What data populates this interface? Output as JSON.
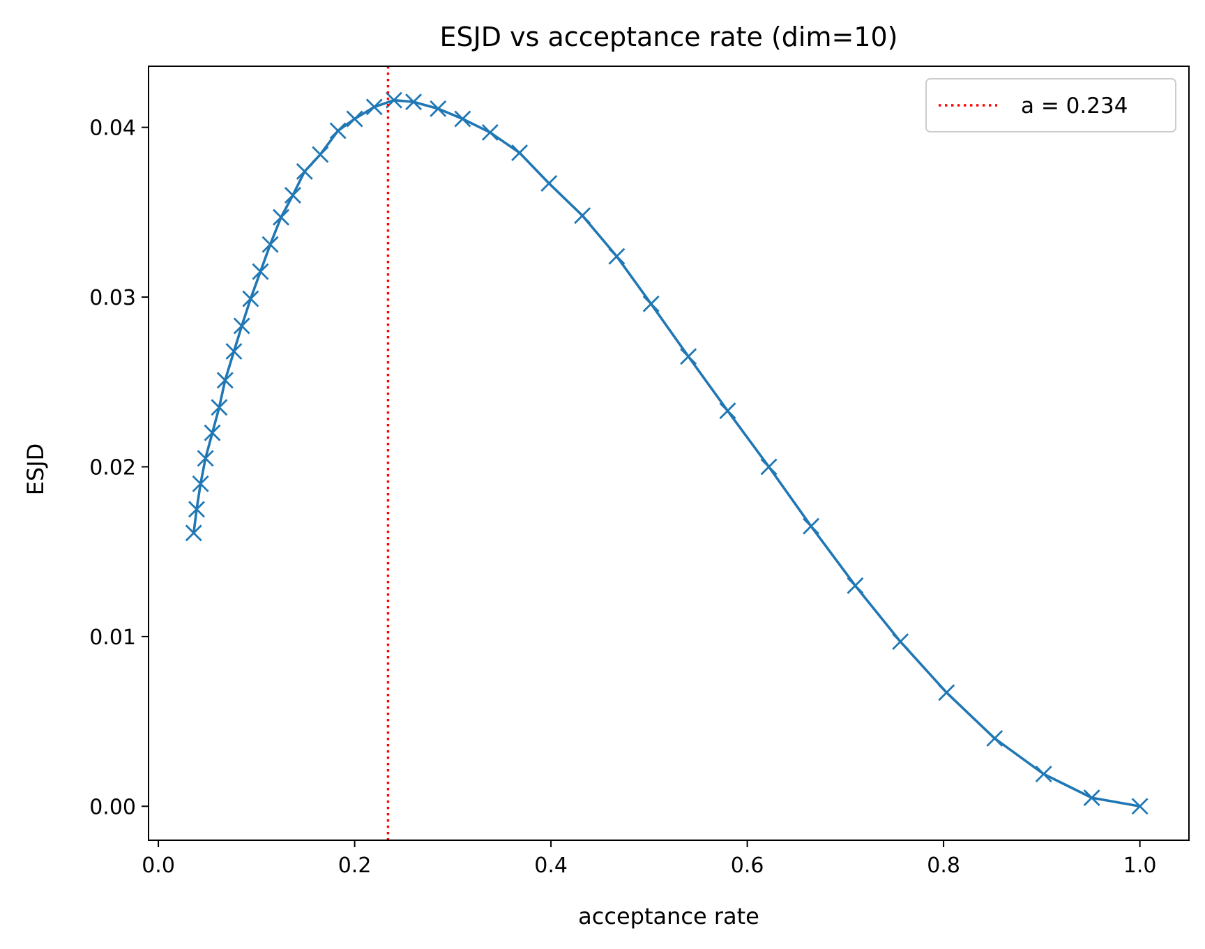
{
  "chart_data": {
    "type": "line",
    "title": "ESJD vs acceptance rate (dim=10)",
    "xlabel": "acceptance rate",
    "ylabel": "ESJD",
    "xlim": [
      -0.01,
      1.05
    ],
    "ylim": [
      -0.002,
      0.0436
    ],
    "xticks": [
      0.0,
      0.2,
      0.4,
      0.6,
      0.8,
      1.0
    ],
    "xtick_labels": [
      "0.0",
      "0.2",
      "0.4",
      "0.6",
      "0.8",
      "1.0"
    ],
    "yticks": [
      0.0,
      0.01,
      0.02,
      0.03,
      0.04
    ],
    "ytick_labels": [
      "0.00",
      "0.01",
      "0.02",
      "0.03",
      "0.04"
    ],
    "grid": false,
    "legend": {
      "placement": "top-right",
      "entries": [
        {
          "label": "a = 0.234",
          "style": "dotted",
          "color": "#ff0000"
        }
      ]
    },
    "vline": {
      "x": 0.234,
      "color": "#ff0000",
      "style": "dotted"
    },
    "series": [
      {
        "color": "#1f77b4",
        "marker": "x",
        "x": [
          0.036,
          0.039,
          0.043,
          0.048,
          0.055,
          0.062,
          0.068,
          0.077,
          0.085,
          0.094,
          0.104,
          0.114,
          0.125,
          0.137,
          0.149,
          0.165,
          0.183,
          0.2,
          0.22,
          0.24,
          0.26,
          0.285,
          0.31,
          0.338,
          0.368,
          0.398,
          0.432,
          0.467,
          0.502,
          0.54,
          0.58,
          0.622,
          0.665,
          0.71,
          0.756,
          0.803,
          0.852,
          0.902,
          0.951,
          1.0
        ],
        "y": [
          0.0161,
          0.0175,
          0.019,
          0.0205,
          0.022,
          0.0235,
          0.0251,
          0.0268,
          0.0283,
          0.0299,
          0.0315,
          0.0331,
          0.0347,
          0.036,
          0.0374,
          0.0384,
          0.0398,
          0.0405,
          0.0412,
          0.0416,
          0.0415,
          0.0411,
          0.0405,
          0.0397,
          0.0385,
          0.0367,
          0.0348,
          0.0324,
          0.0296,
          0.0265,
          0.0233,
          0.02,
          0.0165,
          0.013,
          0.0097,
          0.0067,
          0.004,
          0.0019,
          0.0005,
          0.0
        ]
      }
    ]
  }
}
